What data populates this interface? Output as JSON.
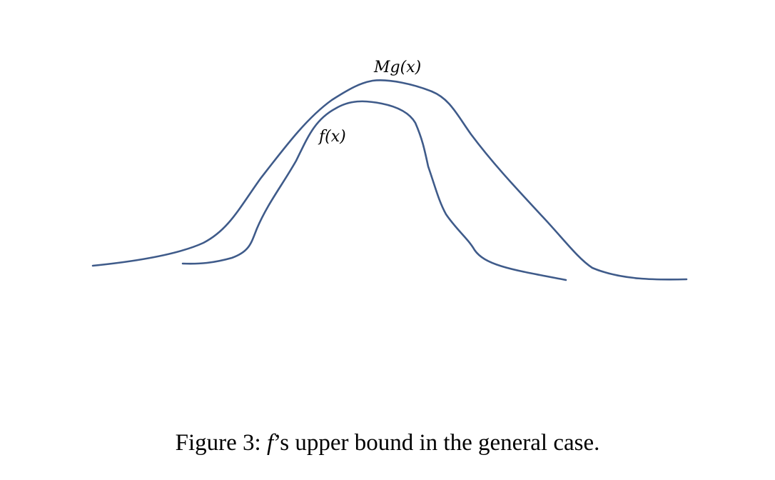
{
  "figure": {
    "curves": [
      {
        "name": "Mg(x)",
        "label": "Mg(x)",
        "color": "#3f5b8a"
      },
      {
        "name": "f(x)",
        "label": "f(x)",
        "color": "#3f5b8a"
      }
    ]
  },
  "caption": {
    "prefix": "Figure 3: ",
    "symbol": "f",
    "suffix": "’s upper bound in the general case."
  }
}
